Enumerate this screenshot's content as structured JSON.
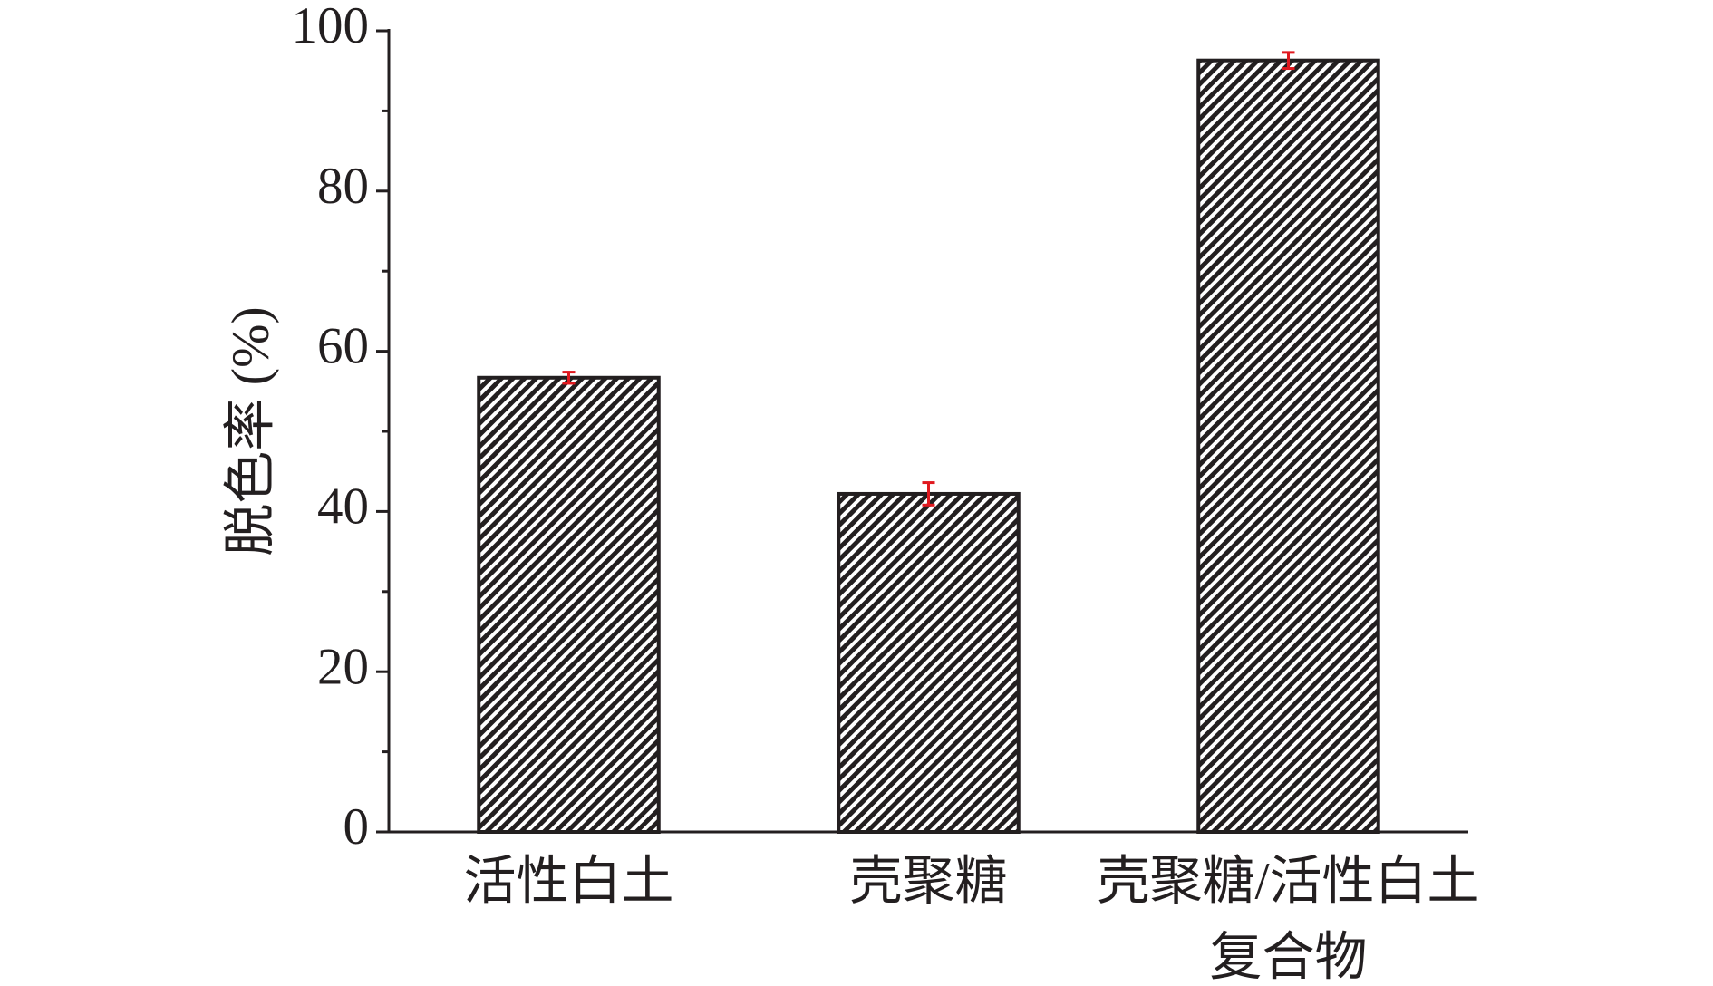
{
  "chart_data": {
    "type": "bar",
    "y_label": "脱色率 (%)",
    "categories": [
      [
        "活性白土"
      ],
      [
        "壳聚糖"
      ],
      [
        "壳聚糖/活性白土",
        "复合物"
      ]
    ],
    "values": [
      56.7,
      42.2,
      96.3
    ],
    "errors": [
      0.7,
      1.4,
      1.0
    ],
    "color": "#231f20",
    "error_color": "#e0191f",
    "hatch": true,
    "ylim": [
      0,
      100
    ],
    "yticks": [
      0,
      20,
      40,
      60,
      80,
      100
    ],
    "yminor_ticks": [
      10,
      30,
      50,
      70,
      90
    ],
    "grid": false
  }
}
